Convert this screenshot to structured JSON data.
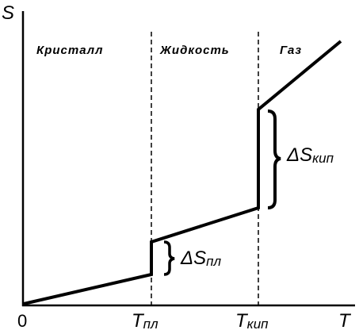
{
  "axes": {
    "y_label": "S",
    "x_label": "T",
    "origin": "0"
  },
  "x_ticks": [
    {
      "main": "T",
      "sub": "пл"
    },
    {
      "main": "T",
      "sub": "кип"
    }
  ],
  "regions": [
    "Кристалл",
    "Жидкость",
    "Газ"
  ],
  "annotations": [
    {
      "main": "ΔS",
      "sub": "пл"
    },
    {
      "main": "ΔS",
      "sub": "кип"
    }
  ]
}
